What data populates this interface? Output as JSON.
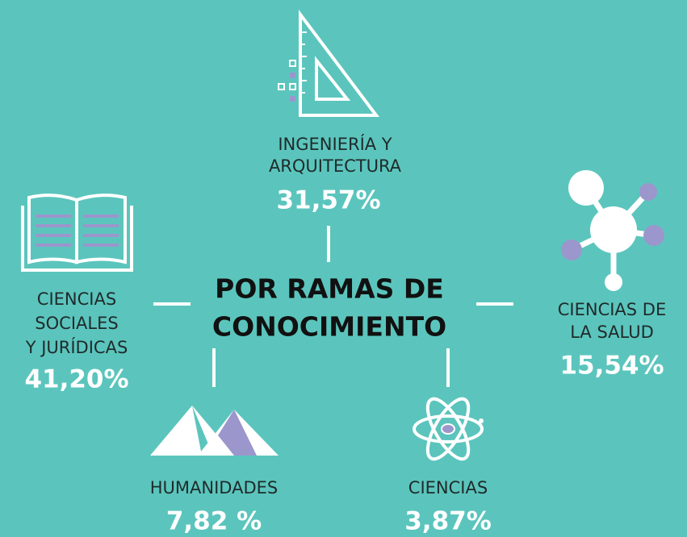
{
  "title": {
    "lines": [
      "POR RAMAS DE",
      "CONOCIMIENTO"
    ]
  },
  "nodes": [
    {
      "label": [
        "INGENIERÍA Y",
        "ARQUITECTURA"
      ],
      "value": "31,57%"
    },
    {
      "label": [
        "CIENCIAS",
        "SOCIALES",
        "Y JURÍDICAS"
      ],
      "value": "41,20%"
    },
    {
      "label": [
        "CIENCIAS DE",
        "LA SALUD"
      ],
      "value": "15,54%"
    },
    {
      "label": [
        "HUMANIDADES"
      ],
      "value": "7,82 %"
    },
    {
      "label": [
        "CIENCIAS"
      ],
      "value": "3,87%"
    }
  ]
}
